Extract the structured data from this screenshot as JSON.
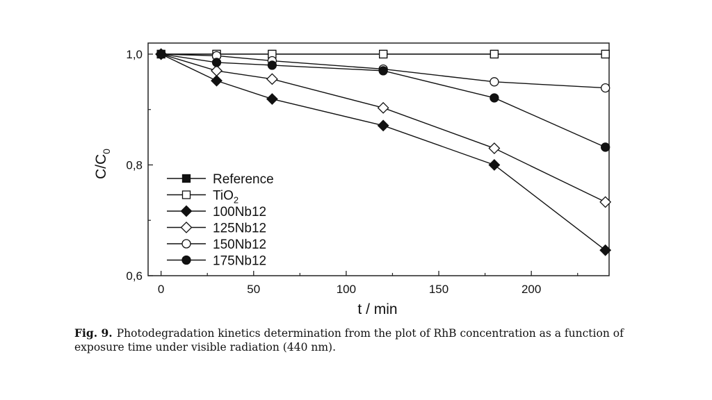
{
  "caption": {
    "label": "Fig. 9.",
    "text": "Photodegradation kinetics determination from the plot of RhB concentration as a function of exposure time under visible radiation (440 nm)."
  },
  "chart_data": {
    "type": "line",
    "xlabel": "t / min",
    "ylabel": "C/C0",
    "ylabel_main": "C/C",
    "ylabel_sub": "0",
    "xlim": [
      -7,
      242
    ],
    "ylim": [
      0.6,
      1.02
    ],
    "xticks": [
      0,
      50,
      100,
      150,
      200
    ],
    "xtick_labels": [
      "0",
      "50",
      "100",
      "150",
      "200"
    ],
    "yticks": [
      0.6,
      0.8,
      1.0
    ],
    "ytick_labels": [
      "0,6",
      "0,8",
      "1,0"
    ],
    "grid": false,
    "legend_position": "bottom-left",
    "series": [
      {
        "name": "Reference",
        "marker": "filled-square",
        "x": [
          0,
          30,
          60,
          120,
          180,
          240
        ],
        "y": [
          1.0,
          1.0,
          1.0,
          1.0,
          1.0,
          1.0
        ]
      },
      {
        "name": "TiO2",
        "name_main": "TiO",
        "name_sub": "2",
        "marker": "open-square",
        "x": [
          0,
          30,
          60,
          120,
          180,
          240
        ],
        "y": [
          1.0,
          1.0,
          1.0,
          1.0,
          1.0,
          1.0
        ]
      },
      {
        "name": "100Nb12",
        "marker": "filled-diamond",
        "x": [
          0,
          30,
          60,
          120,
          180,
          240
        ],
        "y": [
          1.0,
          0.952,
          0.919,
          0.871,
          0.8,
          0.646
        ]
      },
      {
        "name": "125Nb12",
        "marker": "open-diamond",
        "x": [
          0,
          30,
          60,
          120,
          180,
          240
        ],
        "y": [
          1.0,
          0.97,
          0.955,
          0.903,
          0.83,
          0.733
        ]
      },
      {
        "name": "150Nb12",
        "marker": "open-circle",
        "x": [
          0,
          30,
          60,
          120,
          180,
          240
        ],
        "y": [
          1.0,
          0.997,
          0.988,
          0.973,
          0.95,
          0.939
        ]
      },
      {
        "name": "175Nb12",
        "marker": "filled-circle",
        "x": [
          0,
          30,
          60,
          120,
          180,
          240
        ],
        "y": [
          1.0,
          0.985,
          0.98,
          0.97,
          0.921,
          0.832
        ]
      }
    ]
  }
}
